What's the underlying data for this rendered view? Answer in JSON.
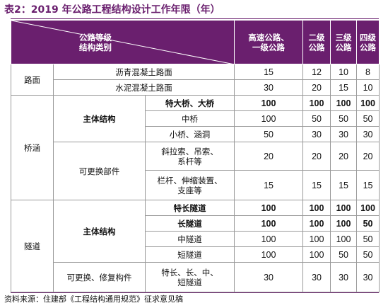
{
  "title": "表2：2019 年公路工程结构设计工作年限（年）",
  "header": {
    "corner_top": "公路等级",
    "corner_bottom": "结构类别",
    "col1_line1": "高速公路、",
    "col1_line2": "一级公路",
    "col2_line1": "二级",
    "col2_line2": "公路",
    "col3_line1": "三级",
    "col3_line2": "公路",
    "col4_line1": "四级",
    "col4_line2": "公路"
  },
  "groups": {
    "road": "路面",
    "bridge": "桥涵",
    "tunnel": "隧道"
  },
  "subgroups": {
    "bridge_main": "主体结构",
    "bridge_replaceable": "可更换部件",
    "tunnel_main": "主体结构",
    "tunnel_replaceable": "可更换、修复构件"
  },
  "rows": [
    {
      "item": "沥青混凝土路面",
      "v1": "15",
      "v2": "12",
      "v3": "10",
      "v4": "8"
    },
    {
      "item": "水泥混凝土路面",
      "v1": "30",
      "v2": "20",
      "v3": "15",
      "v4": "10"
    },
    {
      "item": "特大桥、大桥",
      "v1": "100",
      "v2": "100",
      "v3": "100",
      "v4": "100"
    },
    {
      "item": "中桥",
      "v1": "100",
      "v2": "50",
      "v3": "50",
      "v4": "50"
    },
    {
      "item": "小桥、涵洞",
      "v1": "50",
      "v2": "30",
      "v3": "30",
      "v4": "30"
    },
    {
      "item_line1": "斜拉索、吊索、",
      "item_line2": "系杆等",
      "v1": "20",
      "v2": "20",
      "v3": "20",
      "v4": "20"
    },
    {
      "item_line1": "栏杆、伸缩装置、",
      "item_line2": "支座等",
      "v1": "15",
      "v2": "15",
      "v3": "15",
      "v4": "15"
    },
    {
      "item": "特长隧道",
      "v1": "100",
      "v2": "100",
      "v3": "100",
      "v4": "100"
    },
    {
      "item": "长隧道",
      "v1": "100",
      "v2": "100",
      "v3": "100",
      "v4": "50"
    },
    {
      "item": "中隧道",
      "v1": "100",
      "v2": "100",
      "v3": "100",
      "v4": "50"
    },
    {
      "item": "短隧道",
      "v1": "100",
      "v2": "100",
      "v3": "50",
      "v4": "50"
    },
    {
      "item_line1": "特长、长、中、",
      "item_line2": "短隧道",
      "v1": "30",
      "v2": "30",
      "v3": "30",
      "v4": "30"
    }
  ],
  "source": "资料来源：住建部《工程结构通用规范》征求意见稿",
  "colors": {
    "header_bg": "#6a1f6e",
    "title": "#6a1f6e"
  }
}
